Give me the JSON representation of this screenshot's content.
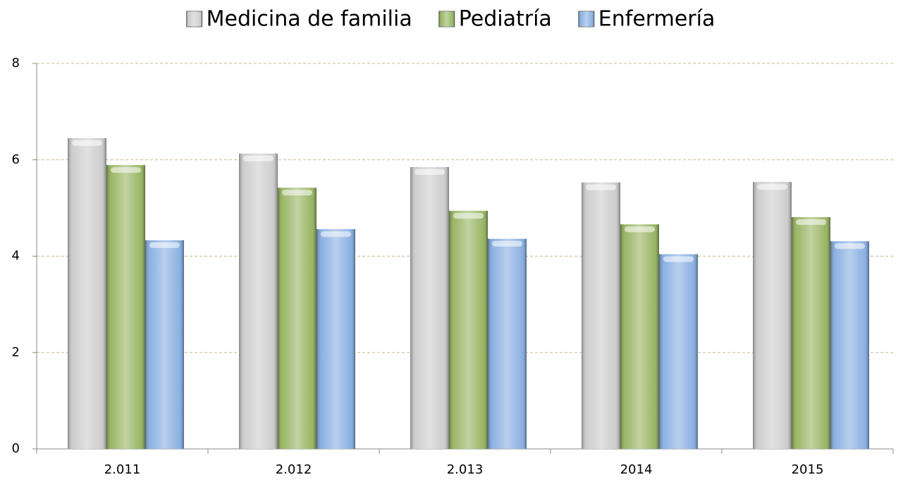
{
  "chart_data": {
    "type": "bar",
    "categories": [
      "2.011",
      "2.012",
      "2.013",
      "2014",
      "2015"
    ],
    "series": [
      {
        "name": "Medicina de familia",
        "color": "#c8c8c8",
        "values": [
          6.45,
          6.13,
          5.85,
          5.53,
          5.54
        ]
      },
      {
        "name": "Pediatría",
        "color": "#8fae55",
        "values": [
          5.89,
          5.42,
          4.94,
          4.66,
          4.81
        ]
      },
      {
        "name": "Enfermería",
        "color": "#7fa8e0",
        "values": [
          4.33,
          4.56,
          4.36,
          4.04,
          4.31
        ]
      }
    ],
    "ylim": [
      0,
      8
    ],
    "yticks": [
      0,
      2,
      4,
      6,
      8
    ],
    "grid": true,
    "legend": "top"
  }
}
